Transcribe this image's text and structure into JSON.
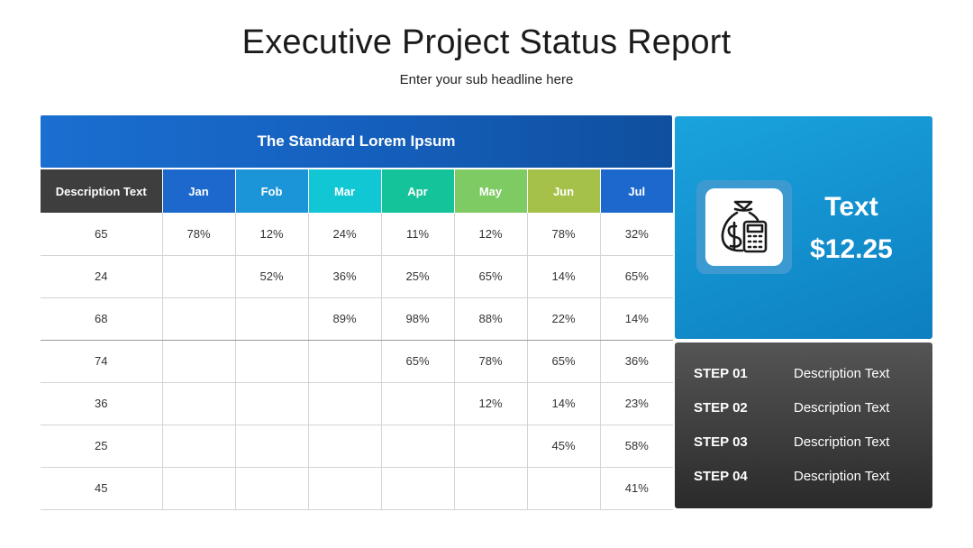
{
  "title": "Executive Project Status Report",
  "subtitle": "Enter your sub headline here",
  "table": {
    "header_title": "The Standard Lorem Ipsum",
    "columns": [
      "Description Text",
      "Jan",
      "Fob",
      "Mar",
      "Apr",
      "May",
      "Jun",
      "Jul"
    ],
    "column_colors": [
      "#3e3e3e",
      "#1d68cc",
      "#1c95d8",
      "#12c7d4",
      "#15c39a",
      "#7ecb63",
      "#a5c14a",
      "#1d68cc"
    ],
    "rows": [
      [
        "65",
        "78%",
        "12%",
        "24%",
        "11%",
        "12%",
        "78%",
        "32%"
      ],
      [
        "24",
        "",
        "52%",
        "36%",
        "25%",
        "65%",
        "14%",
        "65%"
      ],
      [
        "68",
        "",
        "",
        "89%",
        "98%",
        "88%",
        "22%",
        "14%"
      ],
      [
        "74",
        "",
        "",
        "",
        "65%",
        "78%",
        "65%",
        "36%"
      ],
      [
        "36",
        "",
        "",
        "",
        "",
        "12%",
        "14%",
        "23%"
      ],
      [
        "25",
        "",
        "",
        "",
        "",
        "",
        "45%",
        "58%"
      ],
      [
        "45",
        "",
        "",
        "",
        "",
        "",
        "",
        "41%"
      ]
    ]
  },
  "kpi": {
    "icon": "money-bag-calculator-icon",
    "label": "Text",
    "value": "$12.25",
    "background": "#0d8ccc"
  },
  "steps": [
    {
      "step": "STEP 01",
      "description": "Description Text"
    },
    {
      "step": "STEP 02",
      "description": "Description Text"
    },
    {
      "step": "STEP 03",
      "description": "Description Text"
    },
    {
      "step": "STEP 04",
      "description": "Description Text"
    }
  ]
}
